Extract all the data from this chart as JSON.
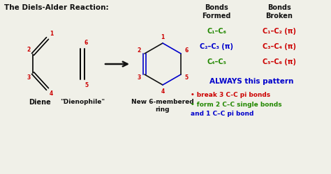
{
  "title": "The Diels-Alder Reaction:",
  "background_color": "#f0f0e8",
  "text_color_black": "#111111",
  "text_color_red": "#cc0000",
  "text_color_green": "#228800",
  "text_color_blue": "#0000cc",
  "bonds_formed_title": "Bonds\nFormed",
  "bonds_broken_title": "Bonds\nBroken",
  "bond_formed_1": "C₁–C₆",
  "bond_formed_2": "C₂–C₃ (π)",
  "bond_formed_3": "C₄–C₅",
  "bond_broken_1": "C₁–C₂ (π)",
  "bond_broken_2": "C₃–C₄ (π)",
  "bond_broken_3": "C₅–C₆ (π)",
  "label_diene": "Diene",
  "label_dienophile": "\"Dienophile\"",
  "label_product": "New 6-membered\nring",
  "always_text": "ALWAYS this pattern",
  "bullet1": "• break 3 C-C pi bonds",
  "bullet2_line1": "• form 2 C–C single bonds",
  "bullet2_line2": "and 1 C–C pi bond"
}
